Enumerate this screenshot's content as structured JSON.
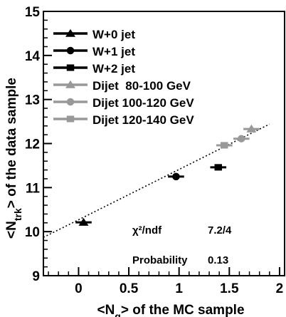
{
  "chart_data": {
    "type": "scatter",
    "title": "",
    "xlabel_html": "<N<tspan baseline-shift='sub' font-size='14'>g</tspan>> of the MC sample",
    "xlabel": "<Ng> of the MC sample",
    "ylabel": "<Ntrk> of the data sample",
    "ylabel_main": "<N",
    "ylabel_sub": "trk",
    "ylabel_rest": "> of the data sample",
    "xlim": [
      -0.35,
      2.05
    ],
    "ylim": [
      9.0,
      15.0
    ],
    "x_ticks": [
      0,
      0.5,
      1,
      1.5,
      2
    ],
    "x_tick_labels": [
      "0",
      "0.5",
      "1",
      "1.5",
      "2"
    ],
    "y_ticks": [
      9,
      10,
      11,
      12,
      13,
      14,
      15
    ],
    "y_tick_labels": [
      "9",
      "10",
      "11",
      "12",
      "13",
      "14",
      "15"
    ],
    "legend_position": "top-left",
    "series": [
      {
        "name": "W+0 jet",
        "marker": "triangle",
        "color": "#000000",
        "x": 0.05,
        "y": 10.21,
        "xerr": 0.08
      },
      {
        "name": "W+1 jet",
        "marker": "circle",
        "color": "#000000",
        "x": 0.97,
        "y": 11.25,
        "xerr": 0.08
      },
      {
        "name": "W+2 jet",
        "marker": "square",
        "color": "#000000",
        "x": 1.39,
        "y": 11.46,
        "xerr": 0.08
      },
      {
        "name": "Dijet  80-100 GeV",
        "marker": "triangle",
        "color": "#999999",
        "x": 1.72,
        "y": 12.33,
        "xerr": 0.08
      },
      {
        "name": "Dijet 100-120 GeV",
        "marker": "circle",
        "color": "#999999",
        "x": 1.62,
        "y": 12.11,
        "xerr": 0.08
      },
      {
        "name": "Dijet 120-140 GeV",
        "marker": "square",
        "color": "#999999",
        "x": 1.45,
        "y": 11.96,
        "xerr": 0.08
      }
    ],
    "fit_line": {
      "x": [
        -0.35,
        1.9
      ],
      "y": [
        9.87,
        12.44
      ],
      "style": "dotted"
    },
    "annotations": {
      "chi2_label": "χ²/ndf",
      "chi2_value": "7.2/4",
      "prob_label": "Probability",
      "prob_value": "0.13"
    }
  }
}
